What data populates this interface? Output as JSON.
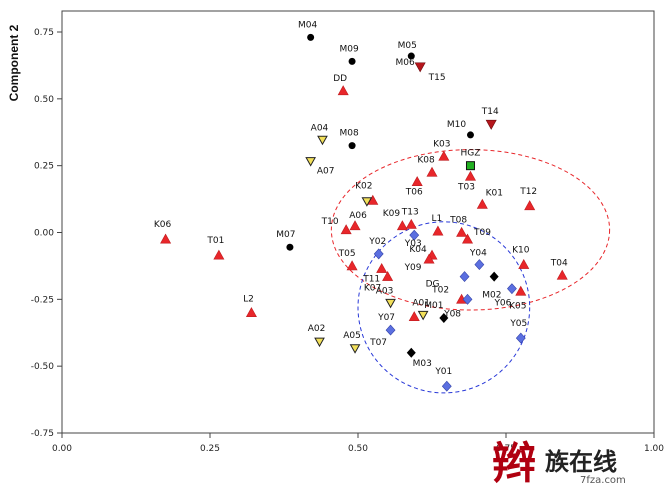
{
  "chart_data": {
    "type": "scatter",
    "title": "",
    "xlabel": "",
    "ylabel": "Component 2",
    "xlim": [
      0,
      1
    ],
    "ylim": [
      -0.75,
      0.82
    ],
    "x_ticks": [
      "0.00",
      "0.25",
      "0.50",
      "0.75",
      "1.00"
    ],
    "y_ticks": [
      "0.75",
      "0.50",
      "0.25",
      "0.00",
      "-0.25",
      "-0.50",
      "-0.75"
    ],
    "grid": false,
    "colors": {
      "triangle_up": "#e8262a",
      "triangle_down_dark": "#b5161c",
      "triangle_down_yellow": "#f2e05a",
      "circle": "#000000",
      "diamond_blue": "#5b6fe0",
      "diamond_black": "#000000",
      "square_green": "#21b021",
      "ellipse_red": "#e8262a",
      "ellipse_blue": "#2838d8"
    },
    "points": [
      {
        "label": "M04",
        "x": 0.42,
        "y": 0.73,
        "marker": "circle"
      },
      {
        "label": "M09",
        "x": 0.49,
        "y": 0.64,
        "marker": "circle"
      },
      {
        "label": "M05",
        "x": 0.59,
        "y": 0.66,
        "marker": "circle"
      },
      {
        "label": "M06",
        "x": 0.605,
        "y": 0.62,
        "marker": "triangle_down_dark"
      },
      {
        "label": "T15",
        "x": 0.605,
        "y": 0.62,
        "marker": "none"
      },
      {
        "label": "DD",
        "x": 0.475,
        "y": 0.53,
        "marker": "triangle_up"
      },
      {
        "label": "M08",
        "x": 0.49,
        "y": 0.325,
        "marker": "circle"
      },
      {
        "label": "A04",
        "x": 0.44,
        "y": 0.345,
        "marker": "triangle_down_yellow"
      },
      {
        "label": "A07",
        "x": 0.42,
        "y": 0.265,
        "marker": "triangle_down_yellow"
      },
      {
        "label": "M10",
        "x": 0.69,
        "y": 0.365,
        "marker": "circle"
      },
      {
        "label": "T14",
        "x": 0.725,
        "y": 0.405,
        "marker": "triangle_down_dark"
      },
      {
        "label": "K03",
        "x": 0.645,
        "y": 0.285,
        "marker": "triangle_up"
      },
      {
        "label": "HGZ",
        "x": 0.69,
        "y": 0.25,
        "marker": "square_green"
      },
      {
        "label": "K08",
        "x": 0.625,
        "y": 0.225,
        "marker": "triangle_up"
      },
      {
        "label": "T06",
        "x": 0.6,
        "y": 0.19,
        "marker": "triangle_up"
      },
      {
        "label": "T03",
        "x": 0.69,
        "y": 0.21,
        "marker": "triangle_up"
      },
      {
        "label": "K01",
        "x": 0.71,
        "y": 0.105,
        "marker": "triangle_up"
      },
      {
        "label": "T12",
        "x": 0.79,
        "y": 0.1,
        "marker": "triangle_up"
      },
      {
        "label": "K02",
        "x": 0.525,
        "y": 0.12,
        "marker": "triangle_up"
      },
      {
        "label": "",
        "x": 0.515,
        "y": 0.115,
        "marker": "triangle_down_yellow"
      },
      {
        "label": "K06",
        "x": 0.175,
        "y": -0.025,
        "marker": "triangle_up"
      },
      {
        "label": "T01",
        "x": 0.265,
        "y": -0.085,
        "marker": "triangle_up"
      },
      {
        "label": "M07",
        "x": 0.385,
        "y": -0.055,
        "marker": "circle"
      },
      {
        "label": "T10",
        "x": 0.48,
        "y": 0.01,
        "marker": "triangle_up"
      },
      {
        "label": "A06",
        "x": 0.495,
        "y": 0.025,
        "marker": "triangle_up"
      },
      {
        "label": "K09",
        "x": 0.575,
        "y": 0.025,
        "marker": "triangle_up"
      },
      {
        "label": "T13",
        "x": 0.59,
        "y": 0.03,
        "marker": "triangle_up"
      },
      {
        "label": "L1",
        "x": 0.635,
        "y": 0.005,
        "marker": "triangle_up"
      },
      {
        "label": "T08",
        "x": 0.675,
        "y": 0.0,
        "marker": "triangle_up"
      },
      {
        "label": "T09",
        "x": 0.685,
        "y": -0.025,
        "marker": "triangle_up"
      },
      {
        "label": "Y02",
        "x": 0.535,
        "y": -0.08,
        "marker": "diamond_blue"
      },
      {
        "label": "Y03",
        "x": 0.595,
        "y": -0.01,
        "marker": "diamond_blue"
      },
      {
        "label": "K04",
        "x": 0.625,
        "y": -0.085,
        "marker": "triangle_up"
      },
      {
        "label": "Y09",
        "x": 0.62,
        "y": -0.1,
        "marker": "triangle_up"
      },
      {
        "label": "Y04",
        "x": 0.705,
        "y": -0.12,
        "marker": "diamond_blue"
      },
      {
        "label": "K10",
        "x": 0.78,
        "y": -0.12,
        "marker": "triangle_up"
      },
      {
        "label": "T04",
        "x": 0.845,
        "y": -0.16,
        "marker": "triangle_up"
      },
      {
        "label": "T05",
        "x": 0.49,
        "y": -0.125,
        "marker": "triangle_up"
      },
      {
        "label": "T11",
        "x": 0.54,
        "y": -0.135,
        "marker": "triangle_up"
      },
      {
        "label": "K07",
        "x": 0.55,
        "y": -0.165,
        "marker": "triangle_up"
      },
      {
        "label": "DG",
        "x": 0.68,
        "y": -0.165,
        "marker": "diamond_blue"
      },
      {
        "label": "",
        "x": 0.73,
        "y": -0.165,
        "marker": "diamond_black"
      },
      {
        "label": "Y06",
        "x": 0.76,
        "y": -0.21,
        "marker": "diamond_blue"
      },
      {
        "label": "M02",
        "x": 0.76,
        "y": -0.21,
        "marker": "none"
      },
      {
        "label": "T02",
        "x": 0.675,
        "y": -0.25,
        "marker": "triangle_up"
      },
      {
        "label": "",
        "x": 0.685,
        "y": -0.25,
        "marker": "diamond_blue"
      },
      {
        "label": "K05",
        "x": 0.775,
        "y": -0.22,
        "marker": "triangle_up"
      },
      {
        "label": "A03",
        "x": 0.555,
        "y": -0.265,
        "marker": "triangle_down_yellow"
      },
      {
        "label": "A01",
        "x": 0.61,
        "y": -0.31,
        "marker": "triangle_down_yellow"
      },
      {
        "label": "",
        "x": 0.595,
        "y": -0.315,
        "marker": "triangle_up"
      },
      {
        "label": "M01",
        "x": 0.645,
        "y": -0.32,
        "marker": "diamond_black"
      },
      {
        "label": "Y08",
        "x": 0.68,
        "y": -0.25,
        "marker": "none"
      },
      {
        "label": "Y07",
        "x": 0.555,
        "y": -0.365,
        "marker": "diamond_blue"
      },
      {
        "label": "T07",
        "x": 0.555,
        "y": -0.365,
        "marker": "none"
      },
      {
        "label": "Y05",
        "x": 0.775,
        "y": -0.395,
        "marker": "diamond_blue"
      },
      {
        "label": "L2",
        "x": 0.32,
        "y": -0.3,
        "marker": "triangle_up"
      },
      {
        "label": "A02",
        "x": 0.435,
        "y": -0.41,
        "marker": "triangle_down_yellow"
      },
      {
        "label": "A05",
        "x": 0.495,
        "y": -0.435,
        "marker": "triangle_down_yellow"
      },
      {
        "label": "M03",
        "x": 0.59,
        "y": -0.45,
        "marker": "diamond_black"
      },
      {
        "label": "Y01",
        "x": 0.65,
        "y": -0.575,
        "marker": "diamond_blue"
      }
    ],
    "ellipses": [
      {
        "cx": 0.69,
        "cy": 0.01,
        "rx": 0.235,
        "ry": 0.3,
        "color": "ellipse_red"
      },
      {
        "cx": 0.645,
        "cy": -0.28,
        "rx": 0.145,
        "ry": 0.32,
        "color": "ellipse_blue"
      }
    ]
  },
  "watermark": {
    "glyph": "辫",
    "text": "族在线",
    "url": "7fza.com"
  }
}
